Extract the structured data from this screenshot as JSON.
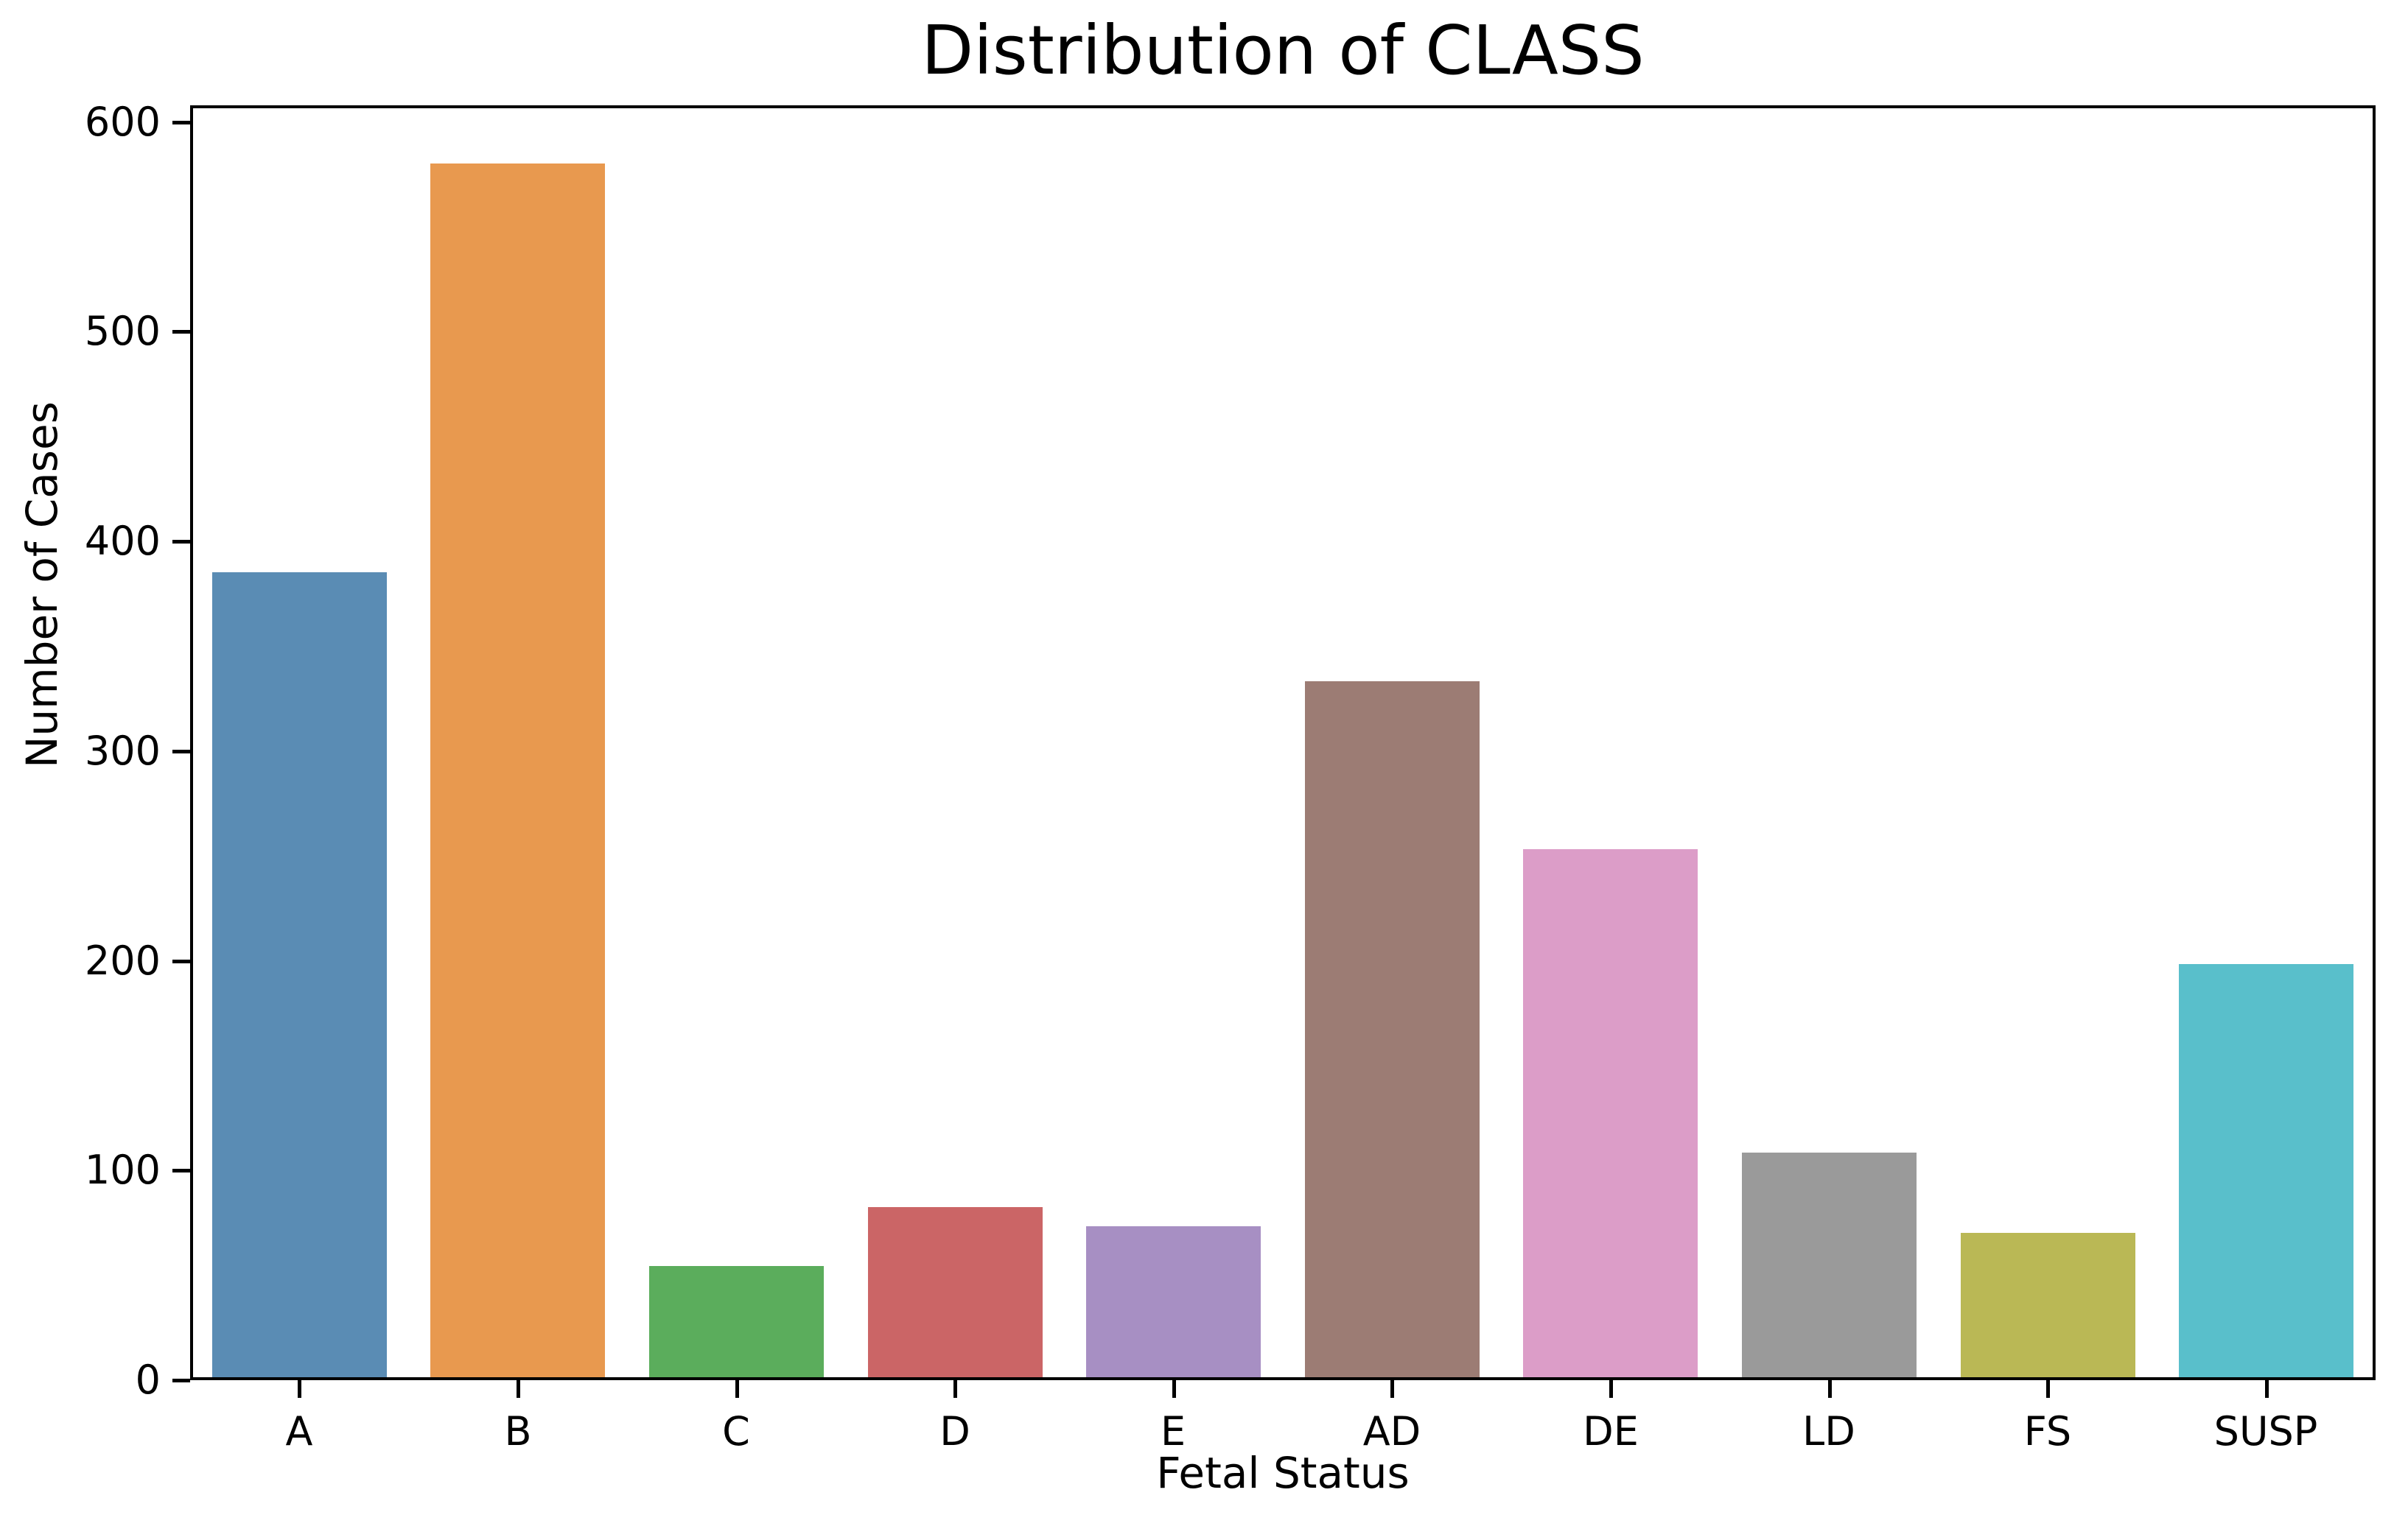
{
  "chart_data": {
    "type": "bar",
    "title": "Distribution of CLASS",
    "xlabel": "Fetal Status",
    "ylabel": "Number of Cases",
    "categories": [
      "A",
      "B",
      "C",
      "D",
      "E",
      "AD",
      "DE",
      "LD",
      "FS",
      "SUSP"
    ],
    "values": [
      384,
      579,
      53,
      81,
      72,
      332,
      252,
      107,
      69,
      197
    ],
    "bar_colors": [
      "#5A8CB4",
      "#E8994F",
      "#5BAD5C",
      "#CB6566",
      "#A78FC3",
      "#9C7C74",
      "#DC9DC8",
      "#9A9A9A",
      "#BAB855",
      "#59BFCB"
    ],
    "yticks": [
      0,
      100,
      200,
      300,
      400,
      500,
      600
    ],
    "ylim": [
      0,
      608
    ],
    "grid": false,
    "legend_position": "none",
    "axis_color": "#000000",
    "background_color": "#ffffff"
  }
}
